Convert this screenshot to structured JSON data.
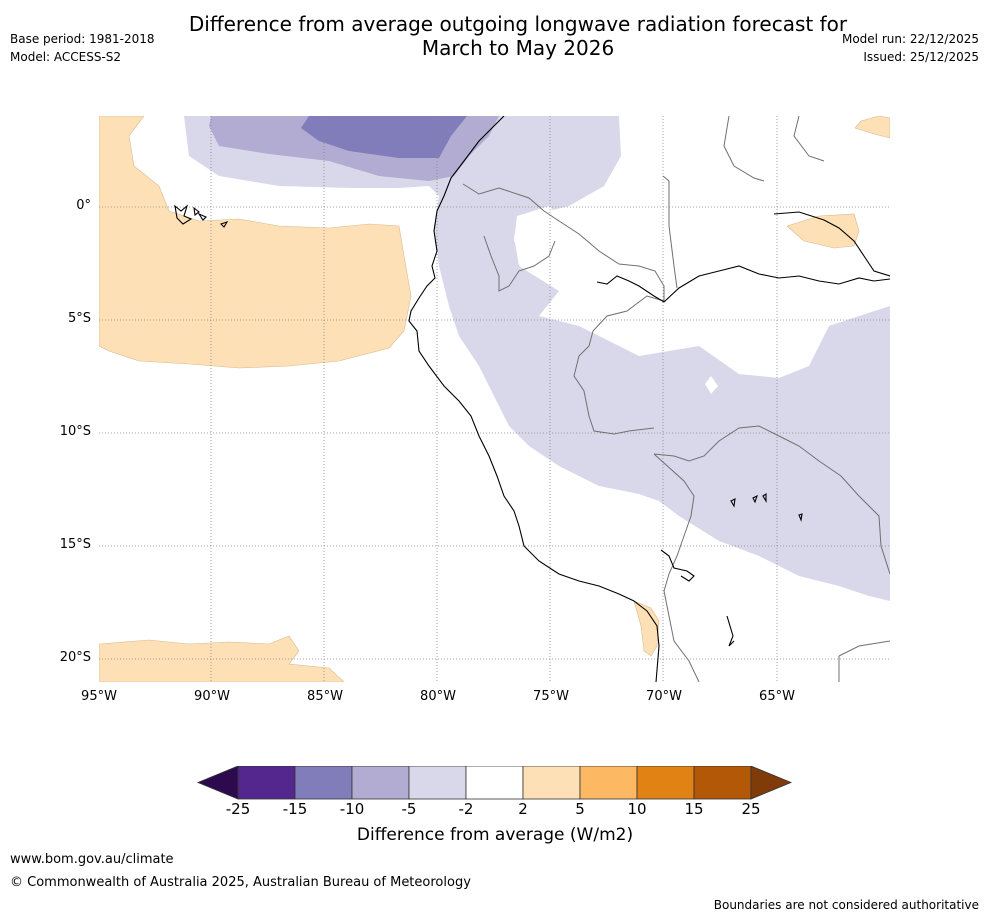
{
  "header": {
    "title_line1": "Difference from average outgoing longwave radiation forecast for",
    "title_line2": "March to May 2026",
    "base_period": "Base period: 1981-2018",
    "model": "Model: ACCESS-S2",
    "model_run": "Model run: 22/12/2025",
    "issued": "Issued: 25/12/2025"
  },
  "map": {
    "lat_labels": [
      "0°",
      "5°S",
      "10°S",
      "15°S",
      "20°S"
    ],
    "lon_labels": [
      "95°W",
      "90°W",
      "85°W",
      "80°W",
      "75°W",
      "70°W",
      "65°W"
    ]
  },
  "colorbar": {
    "ticks": [
      "-25",
      "-15",
      "-10",
      "-5",
      "-2",
      "2",
      "5",
      "10",
      "15",
      "25"
    ],
    "colors": [
      "#2d0a4e",
      "#54278f",
      "#807dba",
      "#b2abd2",
      "#d8d8ea",
      "#ffffff",
      "#fee0b6",
      "#fdb863",
      "#e08214",
      "#b35806",
      "#7f3b08"
    ],
    "title": "Difference from average (W/m2)"
  },
  "footer": {
    "url": "www.bom.gov.au/climate",
    "copyright": "© Commonwealth of Australia 2025, Australian Bureau of Meteorology",
    "disclaimer": "Boundaries are not considered authoritative"
  }
}
